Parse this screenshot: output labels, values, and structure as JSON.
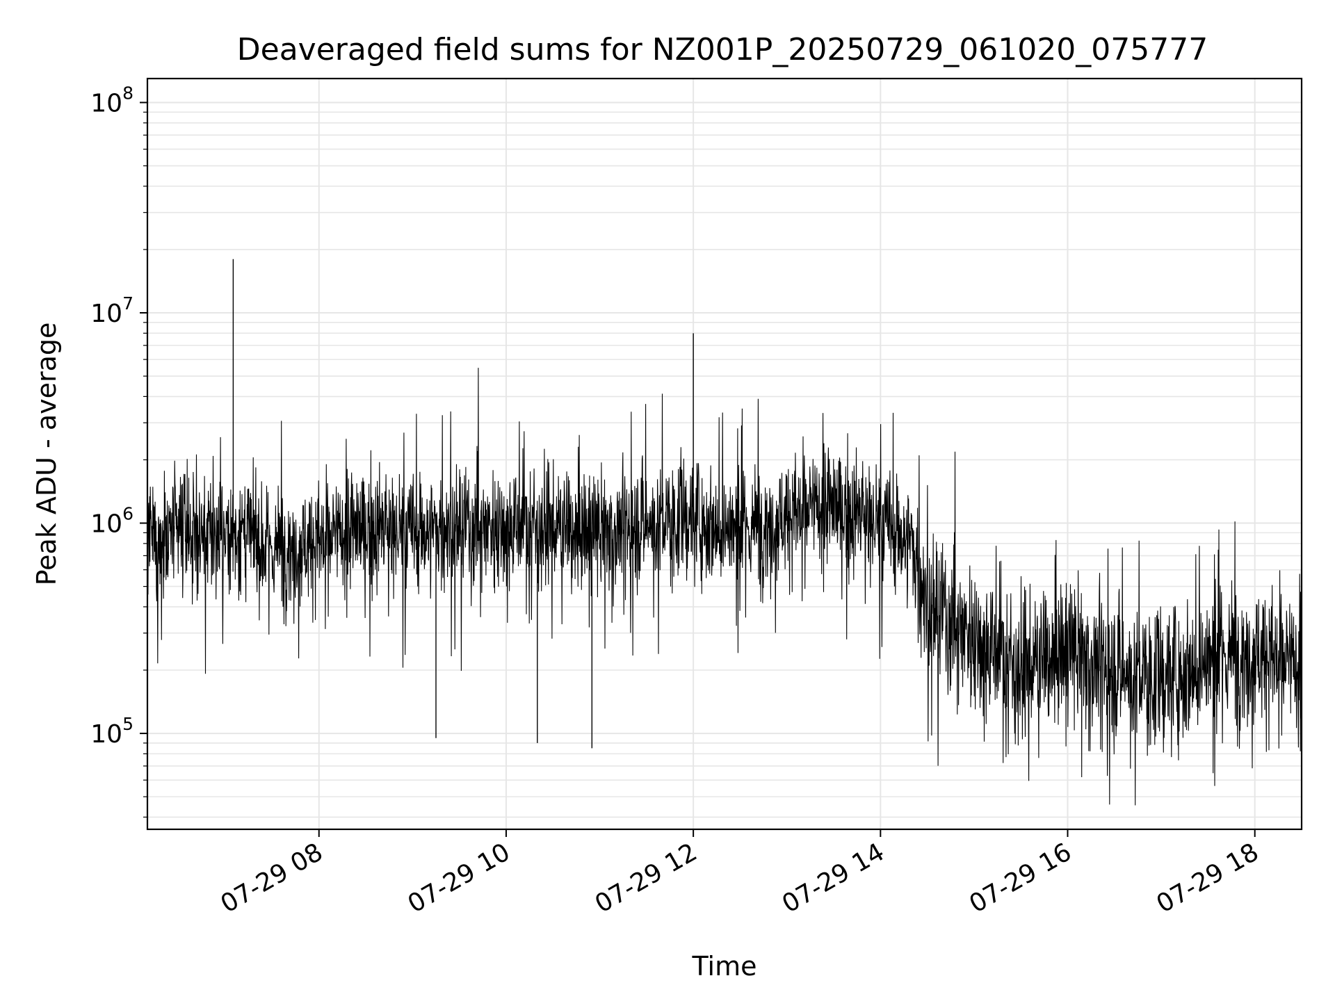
{
  "chart_data": {
    "type": "line",
    "title": "Deaveraged field sums for NZ001P_20250729_061020_075777",
    "xlabel": "Time",
    "ylabel": "Peak ADU - average",
    "y_scale": "log",
    "ylim": [
      35000,
      130000000
    ],
    "xlim": [
      "07-29 06:10",
      "07-29 18:30"
    ],
    "grid": true,
    "line_color": "#000000",
    "grid_color": "#e6e6e6",
    "x_ticks": [
      {
        "time": "07-29 08:00",
        "label": "07-29 08"
      },
      {
        "time": "07-29 10:00",
        "label": "07-29 10"
      },
      {
        "time": "07-29 12:00",
        "label": "07-29 12"
      },
      {
        "time": "07-29 14:00",
        "label": "07-29 14"
      },
      {
        "time": "07-29 16:00",
        "label": "07-29 16"
      },
      {
        "time": "07-29 18:00",
        "label": "07-29 18"
      }
    ],
    "y_ticks": [
      {
        "value": 100000,
        "base": "10",
        "exp": "5"
      },
      {
        "value": 1000000,
        "base": "10",
        "exp": "6"
      },
      {
        "value": 10000000,
        "base": "10",
        "exp": "7"
      },
      {
        "value": 100000000,
        "base": "10",
        "exp": "8"
      }
    ],
    "series": [
      {
        "points": [
          [
            "07-29 06:10",
            800000
          ],
          [
            "07-29 06:30",
            900000
          ],
          [
            "07-29 06:50",
            850000
          ],
          [
            "07-29 07:05",
            18000000
          ],
          [
            "07-29 07:10",
            900000
          ],
          [
            "07-29 07:30",
            750000
          ],
          [
            "07-29 07:50",
            800000
          ],
          [
            "07-29 08:10",
            850000
          ],
          [
            "07-29 08:30",
            950000
          ],
          [
            "07-29 09:00",
            900000
          ],
          [
            "07-29 09:15",
            95000
          ],
          [
            "07-29 09:30",
            950000
          ],
          [
            "07-29 10:00",
            1000000
          ],
          [
            "07-29 10:20",
            90000
          ],
          [
            "07-29 10:30",
            950000
          ],
          [
            "07-29 10:55",
            85000
          ],
          [
            "07-29 11:00",
            900000
          ],
          [
            "07-29 11:30",
            1000000
          ],
          [
            "07-29 12:00",
            1050000
          ],
          [
            "07-29 12:00",
            8000000
          ],
          [
            "07-29 12:30",
            900000
          ],
          [
            "07-29 13:00",
            1100000
          ],
          [
            "07-29 13:30",
            1200000
          ],
          [
            "07-29 14:00",
            1000000
          ],
          [
            "07-29 14:20",
            800000
          ],
          [
            "07-29 14:30",
            400000
          ],
          [
            "07-29 15:00",
            300000
          ],
          [
            "07-29 15:30",
            200000
          ],
          [
            "07-29 16:00",
            250000
          ],
          [
            "07-29 16:30",
            200000
          ],
          [
            "07-29 17:00",
            180000
          ],
          [
            "07-29 17:30",
            220000
          ],
          [
            "07-29 18:00",
            250000
          ],
          [
            "07-29 18:30",
            200000
          ]
        ]
      }
    ]
  }
}
